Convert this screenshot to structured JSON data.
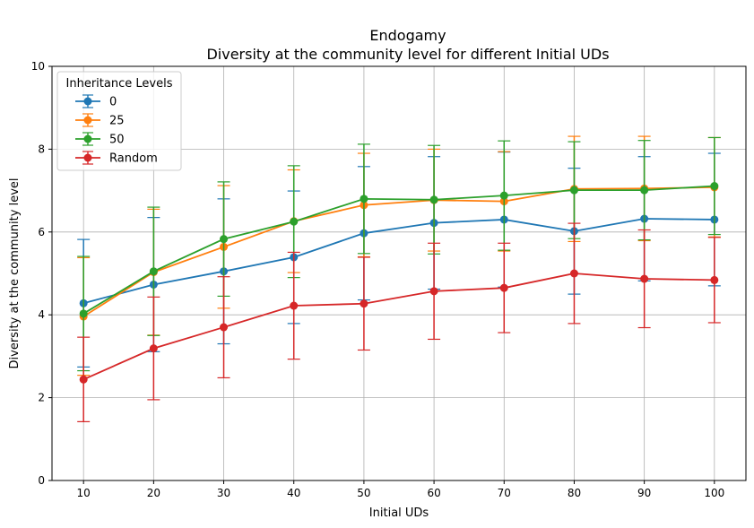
{
  "chart_data": {
    "type": "line",
    "title": "Endogamy",
    "subtitle": "Diversity at the community level for different Initial UDs",
    "xlabel": "Initial UDs",
    "ylabel": "Diversity at the community level",
    "x": [
      10,
      20,
      30,
      40,
      50,
      60,
      70,
      80,
      90,
      100
    ],
    "xlim": [
      5.5,
      104.5
    ],
    "ylim": [
      0,
      10
    ],
    "yticks": [
      0,
      2,
      4,
      6,
      8,
      10
    ],
    "grid": true,
    "error_bars": true,
    "legend": {
      "title": "Inheritance Levels",
      "placement": "upper-left"
    },
    "series": [
      {
        "name": "0",
        "color": "#1f77b4",
        "values": [
          4.28,
          4.73,
          5.05,
          5.39,
          5.97,
          6.22,
          6.3,
          6.02,
          6.32,
          6.3
        ],
        "yerr": [
          1.54,
          1.62,
          1.75,
          1.6,
          1.61,
          1.6,
          1.63,
          1.52,
          1.5,
          1.6
        ]
      },
      {
        "name": "25",
        "color": "#ff7f0e",
        "values": [
          3.96,
          5.03,
          5.64,
          6.26,
          6.65,
          6.77,
          6.74,
          7.04,
          7.05,
          7.08
        ],
        "yerr": [
          1.42,
          1.52,
          1.48,
          1.24,
          1.25,
          1.23,
          1.2,
          1.27,
          1.26,
          1.2
        ]
      },
      {
        "name": "50",
        "color": "#2ca02c",
        "values": [
          4.03,
          5.05,
          5.83,
          6.25,
          6.8,
          6.78,
          6.88,
          7.01,
          7.01,
          7.11
        ],
        "yerr": [
          1.38,
          1.55,
          1.38,
          1.35,
          1.32,
          1.31,
          1.32,
          1.17,
          1.2,
          1.17
        ]
      },
      {
        "name": "Random",
        "color": "#d62728",
        "values": [
          2.44,
          3.19,
          3.7,
          4.22,
          4.27,
          4.57,
          4.65,
          5.0,
          4.87,
          4.84
        ],
        "yerr": [
          1.02,
          1.24,
          1.22,
          1.29,
          1.12,
          1.16,
          1.08,
          1.21,
          1.18,
          1.03
        ]
      }
    ]
  }
}
